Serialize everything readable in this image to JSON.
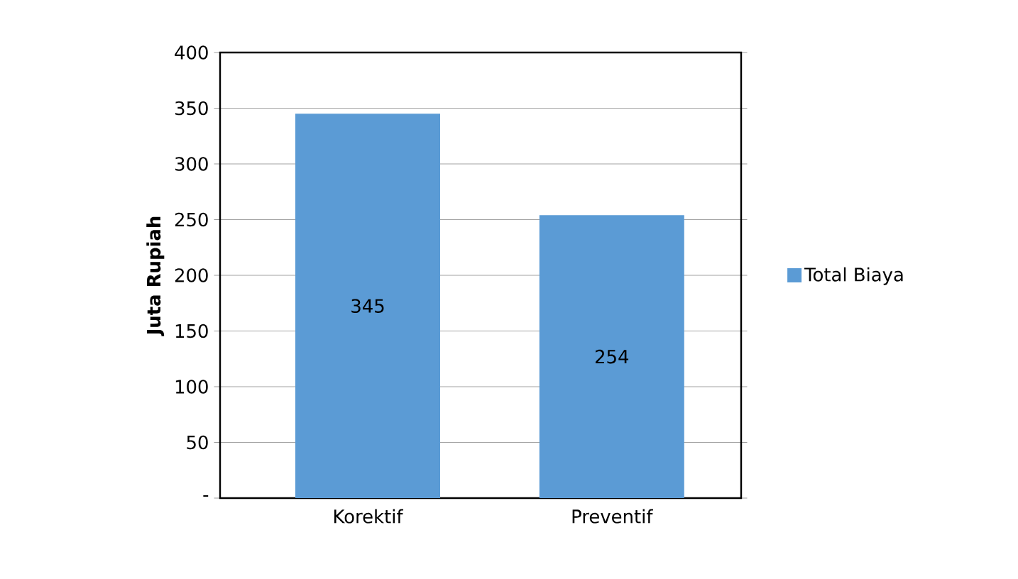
{
  "chart_data": {
    "type": "bar",
    "ylabel": "Juta Rupiah",
    "categories": [
      "Korektif",
      "Preventif"
    ],
    "series": [
      {
        "name": "Total Biaya",
        "color": "#5b9bd5",
        "values": [
          345,
          254
        ]
      }
    ],
    "ylim": [
      0,
      400
    ],
    "yticks": [
      {
        "value": 0,
        "label": "-"
      },
      50,
      100,
      150,
      200,
      250,
      300,
      350,
      400
    ],
    "grid": "y",
    "legend": "right",
    "data_labels": true
  }
}
